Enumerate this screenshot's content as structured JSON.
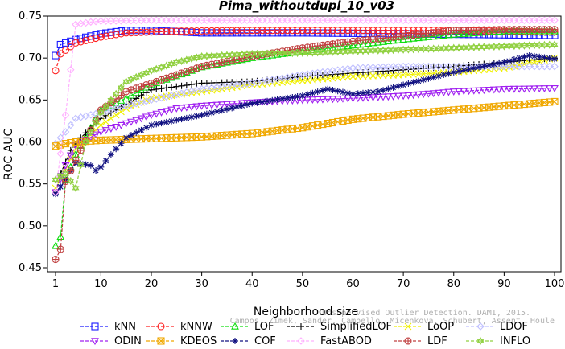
{
  "chart_data": {
    "type": "line",
    "title": "Pima_withoutdupl_10_v03",
    "xlabel": "Neighborhood size",
    "ylabel": "ROC AUC",
    "xlim": [
      1,
      100
    ],
    "ylim": [
      0.45,
      0.75
    ],
    "x_ticks": [
      1,
      10,
      20,
      30,
      40,
      50,
      60,
      70,
      80,
      90,
      100
    ],
    "y_ticks": [
      0.45,
      0.5,
      0.55,
      0.6,
      0.65,
      0.7,
      0.75
    ],
    "grid": false,
    "legend_placement": "bottom",
    "series": [
      {
        "name": "kNN",
        "color": "#1a1aff",
        "marker": "square",
        "keypoints": [
          [
            1,
            0.703
          ],
          [
            2,
            0.716
          ],
          [
            5,
            0.722
          ],
          [
            10,
            0.729
          ],
          [
            15,
            0.733
          ],
          [
            20,
            0.733
          ],
          [
            30,
            0.73
          ],
          [
            50,
            0.73
          ],
          [
            70,
            0.729
          ],
          [
            100,
            0.727
          ]
        ]
      },
      {
        "name": "kNNW",
        "color": "#ff2020",
        "marker": "circle",
        "keypoints": [
          [
            1,
            0.685
          ],
          [
            2,
            0.705
          ],
          [
            5,
            0.718
          ],
          [
            10,
            0.725
          ],
          [
            15,
            0.73
          ],
          [
            25,
            0.732
          ],
          [
            40,
            0.733
          ],
          [
            60,
            0.733
          ],
          [
            80,
            0.733
          ],
          [
            100,
            0.731
          ]
        ]
      },
      {
        "name": "LOF",
        "color": "#10dd10",
        "marker": "triangle-up",
        "keypoints": [
          [
            1,
            0.476
          ],
          [
            2,
            0.487
          ],
          [
            3,
            0.555
          ],
          [
            5,
            0.585
          ],
          [
            10,
            0.638
          ],
          [
            15,
            0.652
          ],
          [
            20,
            0.668
          ],
          [
            30,
            0.689
          ],
          [
            40,
            0.7
          ],
          [
            50,
            0.708
          ],
          [
            60,
            0.715
          ],
          [
            70,
            0.722
          ],
          [
            80,
            0.728
          ],
          [
            90,
            0.732
          ],
          [
            100,
            0.732
          ]
        ]
      },
      {
        "name": "SimplifiedLOF",
        "color": "#000000",
        "marker": "plus",
        "keypoints": [
          [
            1,
            0.54
          ],
          [
            2,
            0.562
          ],
          [
            4,
            0.59
          ],
          [
            6,
            0.605
          ],
          [
            10,
            0.628
          ],
          [
            15,
            0.645
          ],
          [
            20,
            0.662
          ],
          [
            30,
            0.67
          ],
          [
            40,
            0.672
          ],
          [
            50,
            0.678
          ],
          [
            60,
            0.682
          ],
          [
            70,
            0.686
          ],
          [
            80,
            0.69
          ],
          [
            90,
            0.695
          ],
          [
            100,
            0.7
          ]
        ]
      },
      {
        "name": "LoOP",
        "color": "#f0f000",
        "marker": "x",
        "keypoints": [
          [
            1,
            0.545
          ],
          [
            3,
            0.568
          ],
          [
            5,
            0.592
          ],
          [
            10,
            0.62
          ],
          [
            15,
            0.64
          ],
          [
            20,
            0.652
          ],
          [
            30,
            0.66
          ],
          [
            40,
            0.668
          ],
          [
            50,
            0.673
          ],
          [
            60,
            0.678
          ],
          [
            70,
            0.68
          ],
          [
            80,
            0.683
          ],
          [
            90,
            0.688
          ],
          [
            100,
            0.7
          ]
        ]
      },
      {
        "name": "LDOF",
        "color": "#c0c0ff",
        "marker": "diamond",
        "keypoints": [
          [
            1,
            0.598
          ],
          [
            3,
            0.612
          ],
          [
            5,
            0.628
          ],
          [
            10,
            0.635
          ],
          [
            15,
            0.643
          ],
          [
            20,
            0.65
          ],
          [
            30,
            0.663
          ],
          [
            40,
            0.67
          ],
          [
            50,
            0.68
          ],
          [
            60,
            0.688
          ],
          [
            70,
            0.69
          ],
          [
            80,
            0.69
          ],
          [
            90,
            0.69
          ],
          [
            100,
            0.69
          ]
        ]
      },
      {
        "name": "ODIN",
        "color": "#a020f0",
        "marker": "triangle-down",
        "keypoints": [
          [
            1,
            0.54
          ],
          [
            3,
            0.572
          ],
          [
            5,
            0.596
          ],
          [
            10,
            0.612
          ],
          [
            15,
            0.622
          ],
          [
            20,
            0.632
          ],
          [
            25,
            0.64
          ],
          [
            30,
            0.643
          ],
          [
            40,
            0.647
          ],
          [
            50,
            0.65
          ],
          [
            60,
            0.652
          ],
          [
            70,
            0.655
          ],
          [
            80,
            0.66
          ],
          [
            90,
            0.663
          ],
          [
            100,
            0.664
          ]
        ]
      },
      {
        "name": "KDEOS",
        "color": "#f0a800",
        "marker": "square-x",
        "keypoints": [
          [
            1,
            0.595
          ],
          [
            3,
            0.598
          ],
          [
            5,
            0.6
          ],
          [
            10,
            0.602
          ],
          [
            15,
            0.603
          ],
          [
            20,
            0.604
          ],
          [
            30,
            0.606
          ],
          [
            40,
            0.61
          ],
          [
            50,
            0.617
          ],
          [
            60,
            0.627
          ],
          [
            70,
            0.633
          ],
          [
            80,
            0.638
          ],
          [
            90,
            0.643
          ],
          [
            100,
            0.648
          ]
        ]
      },
      {
        "name": "COF",
        "color": "#101080",
        "marker": "asterisk",
        "keypoints": [
          [
            1,
            0.538
          ],
          [
            3,
            0.555
          ],
          [
            5,
            0.575
          ],
          [
            8,
            0.572
          ],
          [
            9,
            0.566
          ],
          [
            10,
            0.57
          ],
          [
            12,
            0.585
          ],
          [
            15,
            0.605
          ],
          [
            20,
            0.62
          ],
          [
            30,
            0.632
          ],
          [
            40,
            0.646
          ],
          [
            50,
            0.655
          ],
          [
            55,
            0.663
          ],
          [
            60,
            0.657
          ],
          [
            65,
            0.66
          ],
          [
            70,
            0.668
          ],
          [
            80,
            0.683
          ],
          [
            90,
            0.695
          ],
          [
            95,
            0.703
          ],
          [
            100,
            0.699
          ]
        ]
      },
      {
        "name": "FastABOD",
        "color": "#ffb0ff",
        "marker": "diamond",
        "keypoints": [
          [
            1,
            0.54
          ],
          [
            3,
            0.632
          ],
          [
            5,
            0.74
          ],
          [
            8,
            0.743
          ],
          [
            10,
            0.744
          ],
          [
            20,
            0.745
          ],
          [
            30,
            0.745
          ],
          [
            50,
            0.745
          ],
          [
            70,
            0.745
          ],
          [
            100,
            0.745
          ]
        ]
      },
      {
        "name": "LDF",
        "color": "#c04040",
        "marker": "circle-plus",
        "keypoints": [
          [
            1,
            0.46
          ],
          [
            2,
            0.472
          ],
          [
            3,
            0.553
          ],
          [
            5,
            0.578
          ],
          [
            10,
            0.638
          ],
          [
            15,
            0.66
          ],
          [
            20,
            0.67
          ],
          [
            30,
            0.69
          ],
          [
            40,
            0.702
          ],
          [
            50,
            0.712
          ],
          [
            60,
            0.72
          ],
          [
            70,
            0.726
          ],
          [
            80,
            0.733
          ],
          [
            90,
            0.734
          ],
          [
            100,
            0.734
          ]
        ]
      },
      {
        "name": "INFLO",
        "color": "#90d040",
        "marker": "star",
        "keypoints": [
          [
            1,
            0.555
          ],
          [
            3,
            0.562
          ],
          [
            5,
            0.545
          ],
          [
            7,
            0.6
          ],
          [
            10,
            0.635
          ],
          [
            15,
            0.672
          ],
          [
            20,
            0.685
          ],
          [
            25,
            0.695
          ],
          [
            30,
            0.702
          ],
          [
            40,
            0.705
          ],
          [
            50,
            0.706
          ],
          [
            60,
            0.708
          ],
          [
            70,
            0.71
          ],
          [
            80,
            0.712
          ],
          [
            90,
            0.714
          ],
          [
            100,
            0.716
          ]
        ]
      }
    ],
    "legend_rows": [
      [
        "kNN",
        "kNNW",
        "LOF",
        "SimplifiedLOF",
        "LoOP",
        "LDOF"
      ],
      [
        "ODIN",
        "KDEOS",
        "COF",
        "FastABOD",
        "LDF",
        "INFLO"
      ]
    ]
  },
  "watermark": {
    "line1": "Unsupervised Outlier Detection. DAMI, 2015.",
    "line2": "Campos, Zimek, Sander, Campello, Micenkova, Schubert, Assent, Houle"
  }
}
